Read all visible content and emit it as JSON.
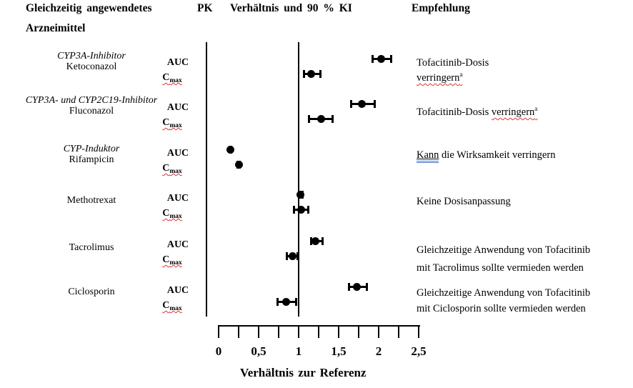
{
  "header": {
    "col_drug_line1": "Gleichzeitig angewendetes",
    "col_drug_line2": "Arzneimittel",
    "col_pk": "PK",
    "col_ratio": "Verhältnis und 90 % KI",
    "col_recommendation": "Empfehlung"
  },
  "colors": {
    "text": "#000000",
    "marker": "#000000",
    "spellcheck_wavy_underline": "#e03131",
    "grammar_double_underline": "#4472c4"
  },
  "chart_data": {
    "type": "scatter",
    "subtype": "forest-plot",
    "title": "",
    "xlabel": "Verhältnis zur Referenz",
    "ylabel": "",
    "xlim": [
      0,
      2.5
    ],
    "x_minor_step": 0.25,
    "x_major_ticks": [
      0,
      0.5,
      1,
      1.5,
      2,
      2.5
    ],
    "x_tick_labels": [
      "0",
      "0,5",
      "1",
      "1,5",
      "2",
      "2,5"
    ],
    "reference_line_x": 1,
    "grid": false,
    "ci_level": "90 % KI",
    "rows": [
      {
        "drug_class": "CYP3A-Inhibitor",
        "drug": "Ketoconazol",
        "measures": [
          {
            "pk_base": "AUC",
            "pk_sub": "",
            "ratio": 2.03,
            "ci": [
              1.91,
              2.17
            ]
          },
          {
            "pk_base": "C",
            "pk_sub": "max",
            "ratio": 1.16,
            "ci": [
              1.05,
              1.29
            ]
          }
        ],
        "recommendation_lines": [
          [
            {
              "text": "Tofacitinib-Dosis"
            }
          ],
          [
            {
              "text": "verringern",
              "decoration": "wavy-red",
              "sup": "a"
            }
          ]
        ]
      },
      {
        "drug_class": "CYP3A- und CYP2C19-Inhibitor",
        "drug": "Fluconazol",
        "measures": [
          {
            "pk_base": "AUC",
            "pk_sub": "",
            "ratio": 1.79,
            "ci": [
              1.64,
              1.96
            ]
          },
          {
            "pk_base": "C",
            "pk_sub": "max",
            "ratio": 1.28,
            "ci": [
              1.12,
              1.44
            ]
          }
        ],
        "recommendation_lines": [
          [
            {
              "text": "Tofacitinib-Dosis "
            },
            {
              "text": "verringern",
              "decoration": "wavy-red",
              "sup": "a"
            }
          ]
        ]
      },
      {
        "drug_class": "CYP-Induktor",
        "drug": "Rifampicin",
        "measures": [
          {
            "pk_base": "AUC",
            "pk_sub": "",
            "ratio": 0.15,
            "ci": [
              0.13,
              0.17
            ]
          },
          {
            "pk_base": "C",
            "pk_sub": "max",
            "ratio": 0.25,
            "ci": [
              0.22,
              0.28
            ]
          }
        ],
        "recommendation_lines": [
          [
            {
              "text": "Kann",
              "decoration": "blue-double"
            },
            {
              "text": " die Wirksamkeit verringern"
            }
          ]
        ]
      },
      {
        "drug_class": "",
        "drug": "Methotrexat",
        "measures": [
          {
            "pk_base": "AUC",
            "pk_sub": "",
            "ratio": 1.02,
            "ci": [
              0.99,
              1.06
            ]
          },
          {
            "pk_base": "C",
            "pk_sub": "max",
            "ratio": 1.03,
            "ci": [
              0.93,
              1.13
            ]
          }
        ],
        "recommendation_lines": [
          [
            {
              "text": "Keine Dosisanpassung"
            }
          ]
        ]
      },
      {
        "drug_class": "",
        "drug": "Tacrolimus",
        "measures": [
          {
            "pk_base": "AUC",
            "pk_sub": "",
            "ratio": 1.21,
            "ci": [
              1.14,
              1.31
            ]
          },
          {
            "pk_base": "C",
            "pk_sub": "max",
            "ratio": 0.92,
            "ci": [
              0.84,
              1.0
            ]
          }
        ],
        "recommendation_lines": [
          [
            {
              "text": "Gleichzeitige Anwendung von Tofacitinib"
            }
          ],
          [
            {
              "text": "mit Tacrolimus sollte vermieden werden"
            }
          ]
        ]
      },
      {
        "drug_class": "",
        "drug": "Ciclosporin",
        "measures": [
          {
            "pk_base": "AUC",
            "pk_sub": "",
            "ratio": 1.73,
            "ci": [
              1.62,
              1.87
            ]
          },
          {
            "pk_base": "C",
            "pk_sub": "max",
            "ratio": 0.84,
            "ci": [
              0.72,
              0.98
            ]
          }
        ],
        "recommendation_lines": [
          [
            {
              "text": "Gleichzeitige Anwendung von Tofacitinib"
            }
          ],
          [
            {
              "text": "mit Ciclosporin sollte vermieden werden"
            }
          ]
        ]
      }
    ]
  }
}
